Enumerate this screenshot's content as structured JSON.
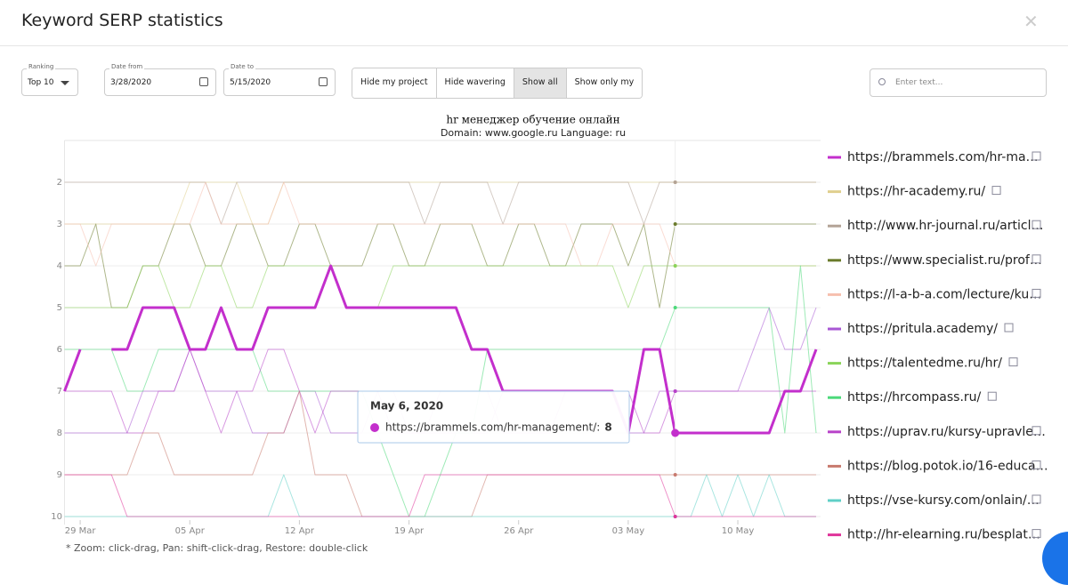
{
  "header": {
    "title": "Keyword SERP statistics"
  },
  "controls": {
    "ranking_label": "Ranking",
    "ranking_value": "Top 10",
    "date_from_label": "Date from",
    "date_from": "3/28/2020",
    "date_to_label": "Date to",
    "date_to": "5/15/2020",
    "buttons": [
      "Hide my project",
      "Hide wavering",
      "Show all",
      "Show only my"
    ],
    "search_placeholder": "Enter text..."
  },
  "footnote": "* Zoom: click-drag, Pan: shift-click-drag, Restore: double-click",
  "chart_data": {
    "type": "line",
    "title": "hr менеджер обучение онлайн",
    "subtitle": "Domain: www.google.ru Language: ru",
    "x": [
      "2020-03-28",
      "2020-03-29",
      "2020-03-30",
      "2020-03-31",
      "2020-04-01",
      "2020-04-02",
      "2020-04-03",
      "2020-04-04",
      "2020-04-05",
      "2020-04-06",
      "2020-04-07",
      "2020-04-08",
      "2020-04-09",
      "2020-04-10",
      "2020-04-11",
      "2020-04-12",
      "2020-04-13",
      "2020-04-14",
      "2020-04-15",
      "2020-04-16",
      "2020-04-17",
      "2020-04-18",
      "2020-04-19",
      "2020-04-20",
      "2020-04-21",
      "2020-04-22",
      "2020-04-23",
      "2020-04-24",
      "2020-04-25",
      "2020-04-26",
      "2020-04-27",
      "2020-04-28",
      "2020-04-29",
      "2020-04-30",
      "2020-05-01",
      "2020-05-02",
      "2020-05-03",
      "2020-05-04",
      "2020-05-05",
      "2020-05-06",
      "2020-05-07",
      "2020-05-08",
      "2020-05-09",
      "2020-05-10",
      "2020-05-11",
      "2020-05-12",
      "2020-05-13",
      "2020-05-14",
      "2020-05-15"
    ],
    "xlim": [
      "2020-03-28",
      "2020-05-15"
    ],
    "xticks": [
      {
        "value": "2020-03-29",
        "label": "29 Mar"
      },
      {
        "value": "2020-04-05",
        "label": "05 Apr"
      },
      {
        "value": "2020-04-12",
        "label": "12 Apr"
      },
      {
        "value": "2020-04-19",
        "label": "19 Apr"
      },
      {
        "value": "2020-04-26",
        "label": "26 Apr"
      },
      {
        "value": "2020-05-03",
        "label": "03 May"
      },
      {
        "value": "2020-05-10",
        "label": "10 May"
      }
    ],
    "ylim": [
      1,
      10
    ],
    "y_inverted": true,
    "yticks": [
      2,
      3,
      4,
      5,
      6,
      7,
      8,
      9,
      10
    ],
    "grid": true,
    "highlight": "https://brammels.com/hr-ma…",
    "tooltip": {
      "date": "May 6, 2020",
      "series": "https://brammels.com/hr-management/:"
    },
    "series": [
      {
        "name": "https://brammels.com/hr-ma…",
        "color": "#c32fcc",
        "values": [
          7,
          6,
          null,
          6,
          6,
          5,
          5,
          5,
          6,
          6,
          5,
          6,
          6,
          5,
          5,
          5,
          5,
          4,
          5,
          5,
          5,
          5,
          5,
          5,
          5,
          5,
          6,
          6,
          7,
          7,
          7,
          7,
          7,
          7,
          7,
          7,
          8,
          6,
          6,
          8,
          8,
          8,
          8,
          8,
          8,
          8,
          7,
          7,
          6
        ]
      },
      {
        "name": "https://hr-academy.ru/",
        "color": "#e0cf8e",
        "values": [
          3,
          3,
          3,
          3,
          3,
          3,
          3,
          3,
          2,
          2,
          2,
          2,
          3,
          3,
          2,
          2,
          2,
          2,
          2,
          2,
          2,
          2,
          2,
          2,
          2,
          2,
          2,
          2,
          2,
          2,
          2,
          2,
          2,
          2,
          2,
          2,
          2,
          2,
          2,
          2,
          2,
          2,
          2,
          2,
          2,
          2,
          2,
          2,
          2
        ]
      },
      {
        "name": "http://www.hr-journal.ru/articl…",
        "color": "#b3a396",
        "values": [
          2,
          2,
          2,
          2,
          2,
          2,
          2,
          2,
          2,
          2,
          3,
          2,
          2,
          2,
          2,
          2,
          2,
          2,
          2,
          2,
          2,
          2,
          2,
          3,
          2,
          2,
          2,
          2,
          3,
          2,
          2,
          2,
          2,
          2,
          2,
          2,
          2,
          3,
          2,
          2,
          2,
          2,
          2,
          2,
          2,
          2,
          2,
          2,
          2
        ]
      },
      {
        "name": "https://www.specialist.ru/prof…",
        "color": "#6b7c2c",
        "values": [
          4,
          4,
          3,
          5,
          5,
          4,
          4,
          3,
          3,
          4,
          4,
          3,
          3,
          4,
          4,
          3,
          3,
          4,
          4,
          4,
          3,
          3,
          4,
          4,
          3,
          3,
          3,
          4,
          4,
          3,
          3,
          4,
          4,
          3,
          3,
          3,
          4,
          3,
          5,
          3,
          3,
          3,
          3,
          3,
          3,
          3,
          3,
          3,
          3
        ]
      },
      {
        "name": "https://l-a-b-a.com/lecture/ku…",
        "color": "#f6bfae",
        "values": [
          3,
          3,
          4,
          3,
          3,
          3,
          3,
          3,
          3,
          2,
          3,
          3,
          3,
          3,
          2,
          3,
          3,
          3,
          3,
          3,
          3,
          3,
          3,
          3,
          3,
          3,
          3,
          3,
          3,
          3,
          3,
          3,
          3,
          4,
          4,
          3,
          3,
          3,
          3,
          4,
          4,
          4,
          4,
          4,
          4,
          4,
          4,
          4,
          4
        ]
      },
      {
        "name": "https://pritula.academy/",
        "color": "#a857d4",
        "values": [
          8,
          8,
          8,
          8,
          8,
          7,
          7,
          7,
          6,
          7,
          7,
          7,
          8,
          8,
          8,
          7,
          7,
          8,
          8,
          8,
          7,
          7,
          8,
          8,
          8,
          8,
          8,
          8,
          7,
          7,
          7,
          7,
          7,
          7,
          7,
          7,
          8,
          8,
          7,
          7,
          7,
          7,
          7,
          7,
          6,
          5,
          6,
          6,
          5
        ]
      },
      {
        "name": "https://talentedme.ru/hr/",
        "color": "#8ad45a",
        "values": [
          5,
          5,
          5,
          5,
          5,
          4,
          4,
          5,
          5,
          4,
          4,
          5,
          5,
          4,
          4,
          4,
          4,
          4,
          5,
          5,
          5,
          4,
          4,
          4,
          4,
          4,
          4,
          4,
          4,
          4,
          4,
          4,
          4,
          4,
          4,
          4,
          5,
          4,
          4,
          4,
          4,
          4,
          4,
          4,
          4,
          4,
          4,
          4,
          4
        ]
      },
      {
        "name": "https://hrcompass.ru/",
        "color": "#4cd97a",
        "values": [
          6,
          6,
          6,
          6,
          7,
          7,
          6,
          6,
          6,
          6,
          6,
          6,
          6,
          7,
          7,
          7,
          7,
          7,
          7,
          7,
          8,
          9,
          10,
          10,
          9,
          8,
          8,
          6,
          6,
          6,
          6,
          6,
          6,
          6,
          6,
          6,
          6,
          6,
          6,
          5,
          5,
          5,
          5,
          5,
          5,
          5,
          8,
          4,
          8
        ]
      },
      {
        "name": "https://uprav.ru/kursy-upravle…",
        "color": "#b843c9",
        "values": [
          7,
          7,
          7,
          7,
          8,
          8,
          7,
          7,
          6,
          7,
          8,
          7,
          7,
          6,
          6,
          7,
          8,
          7,
          7,
          7,
          7,
          8,
          8,
          8,
          7,
          7,
          7,
          7,
          8,
          8,
          8,
          8,
          7,
          7,
          7,
          7,
          7,
          8,
          8,
          7,
          7,
          7,
          7,
          7,
          7,
          7,
          7,
          7,
          7
        ]
      },
      {
        "name": "https://blog.potok.io/16-educa…",
        "color": "#c87a6e",
        "values": [
          9,
          9,
          9,
          9,
          9,
          8,
          8,
          9,
          9,
          9,
          9,
          9,
          9,
          8,
          8,
          7,
          9,
          9,
          9,
          10,
          10,
          10,
          10,
          10,
          10,
          10,
          10,
          9,
          9,
          9,
          9,
          9,
          9,
          9,
          9,
          9,
          9,
          9,
          9,
          9,
          9,
          9,
          9,
          9,
          9,
          9,
          9,
          9,
          9
        ]
      },
      {
        "name": "https://vse-kursy.com/onlain/…",
        "color": "#5fcfc7",
        "values": [
          10,
          10,
          10,
          10,
          10,
          10,
          10,
          10,
          10,
          10,
          10,
          10,
          10,
          10,
          9,
          10,
          10,
          10,
          10,
          10,
          10,
          10,
          10,
          10,
          10,
          10,
          10,
          10,
          10,
          10,
          10,
          10,
          10,
          10,
          10,
          10,
          10,
          10,
          10,
          10,
          10,
          9,
          10,
          9,
          10,
          9,
          10,
          10,
          10
        ]
      },
      {
        "name": "http://hr-elearning.ru/besplat…",
        "color": "#e0349a",
        "values": [
          9,
          9,
          9,
          9,
          10,
          10,
          10,
          10,
          10,
          10,
          10,
          10,
          10,
          10,
          10,
          10,
          10,
          10,
          10,
          10,
          10,
          10,
          10,
          9,
          9,
          9,
          9,
          9,
          9,
          9,
          9,
          9,
          9,
          9,
          9,
          9,
          9,
          9,
          9,
          10,
          10,
          10,
          10,
          10,
          10,
          10,
          10,
          10,
          10
        ]
      }
    ]
  }
}
